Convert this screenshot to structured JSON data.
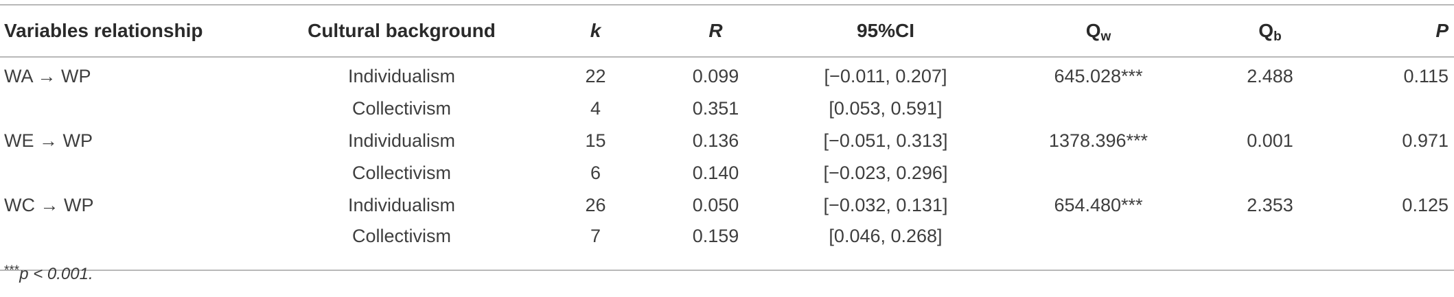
{
  "table": {
    "headers": {
      "relationship": "Variables relationship",
      "culture": "Cultural background",
      "k": "k",
      "r": "R",
      "ci": "95%CI",
      "qw_base": "Q",
      "qw_sub": "w",
      "qb_base": "Q",
      "qb_sub": "b",
      "p": "P"
    },
    "rows": [
      {
        "relationship": "WA → WP",
        "culture": "Individualism",
        "k": "22",
        "r": "0.099",
        "ci": "[−0.011, 0.207]",
        "qw": "645.028***",
        "qb": "2.488",
        "p": "0.115"
      },
      {
        "relationship": "",
        "culture": "Collectivism",
        "k": "4",
        "r": "0.351",
        "ci": "[0.053, 0.591]",
        "qw": "",
        "qb": "",
        "p": ""
      },
      {
        "relationship": "WE → WP",
        "culture": "Individualism",
        "k": "15",
        "r": "0.136",
        "ci": "[−0.051, 0.313]",
        "qw": "1378.396***",
        "qb": "0.001",
        "p": "0.971"
      },
      {
        "relationship": "",
        "culture": "Collectivism",
        "k": "6",
        "r": "0.140",
        "ci": "[−0.023, 0.296]",
        "qw": "",
        "qb": "",
        "p": ""
      },
      {
        "relationship": "WC → WP",
        "culture": "Individualism",
        "k": "26",
        "r": "0.050",
        "ci": "[−0.032, 0.131]",
        "qw": "654.480***",
        "qb": "2.353",
        "p": "0.125"
      },
      {
        "relationship": "",
        "culture": "Collectivism",
        "k": "7",
        "r": "0.159",
        "ci": "[0.046, 0.268]",
        "qw": "",
        "qb": "",
        "p": ""
      }
    ]
  },
  "footnote": {
    "stars": "***",
    "text": "p < 0.001."
  }
}
